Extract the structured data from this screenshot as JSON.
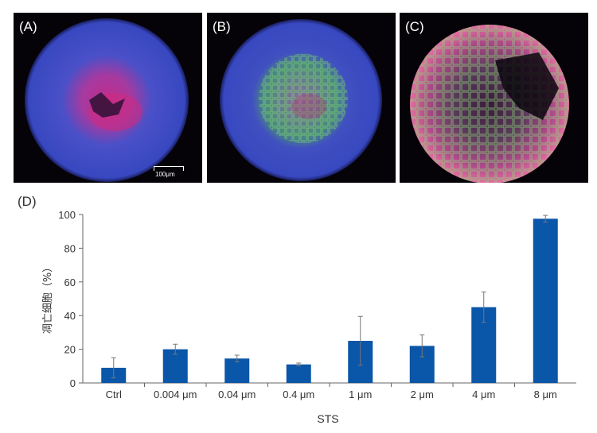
{
  "panels": [
    {
      "label": "(A)",
      "scale_text": "100μm"
    },
    {
      "label": "(B)"
    },
    {
      "label": "(C)"
    }
  ],
  "chart_label": "(D)",
  "colors": {
    "bar": "#0a56a8",
    "axis": "#666666",
    "nuclei": "#3a4fc8",
    "apoptotic_red": "#d02a6a",
    "apoptotic_green": "#5ec860"
  },
  "chart_data": {
    "type": "bar",
    "categories": [
      "Ctrl",
      "0.004 μm",
      "0.04 μm",
      "0.4 μm",
      "1 μm",
      "2 μm",
      "4 μm",
      "8 μm"
    ],
    "values": [
      9,
      20,
      14.5,
      11,
      25,
      22,
      45,
      97.5
    ],
    "errors": [
      6,
      3,
      2,
      0.8,
      14.5,
      6.5,
      9,
      2
    ],
    "xlabel": "STS",
    "ylabel": "凋亡细胞（%）",
    "ylim": [
      0,
      100
    ],
    "yticks": [
      0,
      20,
      40,
      60,
      80,
      100
    ],
    "grid": false
  }
}
